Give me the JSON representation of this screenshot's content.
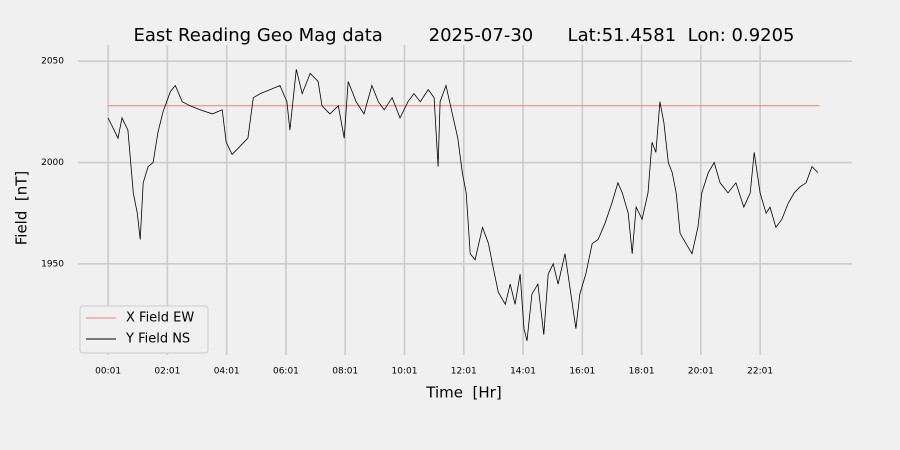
{
  "chart_data": {
    "type": "line",
    "title": "East Reading Geo Mag data        2025-07-30      Lat:51.4581  Lon: 0.9205",
    "x_label": "Time  [Hr]",
    "y_label": "Field  [nT]",
    "xlim": [
      -60,
      1507
    ],
    "ylim": [
      1905,
      2058
    ],
    "xticks": [
      {
        "value": 1,
        "label": "00:01"
      },
      {
        "value": 121,
        "label": "02:01"
      },
      {
        "value": 241,
        "label": "04:01"
      },
      {
        "value": 361,
        "label": "06:01"
      },
      {
        "value": 481,
        "label": "08:01"
      },
      {
        "value": 601,
        "label": "10:01"
      },
      {
        "value": 721,
        "label": "12:01"
      },
      {
        "value": 841,
        "label": "14:01"
      },
      {
        "value": 961,
        "label": "16:01"
      },
      {
        "value": 1081,
        "label": "18:01"
      },
      {
        "value": 1201,
        "label": "20:01"
      },
      {
        "value": 1321,
        "label": "22:01"
      }
    ],
    "yticks": [
      1950,
      2000,
      2050
    ],
    "grid": true,
    "legend": "lower left",
    "series": [
      {
        "name": "X Field EW",
        "color": "#f08070",
        "x": [
          1,
          1441
        ],
        "values": [
          2028,
          2028
        ]
      },
      {
        "name": "Y Field NS",
        "color": "#000000",
        "x": [
          1,
          9,
          21,
          29,
          41,
          52,
          60,
          66,
          72,
          82,
          92,
          102,
          112,
          127,
          137,
          151,
          167,
          187,
          212,
          232,
          240,
          252,
          268,
          284,
          295,
          309,
          329,
          349,
          363,
          369,
          382,
          394,
          410,
          426,
          434,
          450,
          467,
          479,
          487,
          503,
          519,
          535,
          548,
          560,
          576,
          592,
          608,
          620,
          633,
          649,
          661,
          669,
          673,
          685,
          697,
          709,
          718,
          726,
          734,
          744,
          759,
          771,
          779,
          791,
          805,
          815,
          825,
          835,
          843,
          849,
          859,
          871,
          883,
          892,
          902,
          912,
          926,
          936,
          948,
          956,
          968,
          981,
          993,
          1007,
          1021,
          1033,
          1042,
          1054,
          1062,
          1070,
          1082,
          1094,
          1102,
          1110,
          1118,
          1126,
          1135,
          1143,
          1151,
          1159,
          1171,
          1183,
          1195,
          1203,
          1216,
          1228,
          1240,
          1256,
          1272,
          1288,
          1301,
          1309,
          1321,
          1333,
          1341,
          1353,
          1365,
          1378,
          1390,
          1402,
          1414,
          1426,
          1438
        ],
        "values": [
          2022,
          2018,
          2012,
          2022,
          2016,
          1985,
          1975,
          1962,
          1990,
          1998,
          2000,
          2015,
          2025,
          2035,
          2038,
          2030,
          2028,
          2026,
          2024,
          2026,
          2010,
          2004,
          2008,
          2012,
          2032,
          2034,
          2036,
          2038,
          2030,
          2016,
          2046,
          2034,
          2044,
          2040,
          2028,
          2024,
          2028,
          2012,
          2040,
          2030,
          2024,
          2038,
          2030,
          2026,
          2032,
          2022,
          2030,
          2034,
          2030,
          2036,
          2032,
          1998,
          2030,
          2038,
          2025,
          2012,
          1995,
          1985,
          1955,
          1952,
          1968,
          1960,
          1950,
          1936,
          1930,
          1940,
          1930,
          1945,
          1918,
          1912,
          1935,
          1940,
          1915,
          1945,
          1950,
          1940,
          1955,
          1938,
          1918,
          1935,
          1945,
          1960,
          1962,
          1970,
          1980,
          1990,
          1985,
          1975,
          1955,
          1978,
          1972,
          1985,
          2010,
          2005,
          2030,
          2020,
          2000,
          1995,
          1985,
          1965,
          1960,
          1955,
          1968,
          1985,
          1995,
          2000,
          1990,
          1985,
          1990,
          1978,
          1985,
          2005,
          1985,
          1975,
          1978,
          1968,
          1972,
          1980,
          1985,
          1988,
          1990,
          1998,
          1995
        ]
      }
    ]
  }
}
